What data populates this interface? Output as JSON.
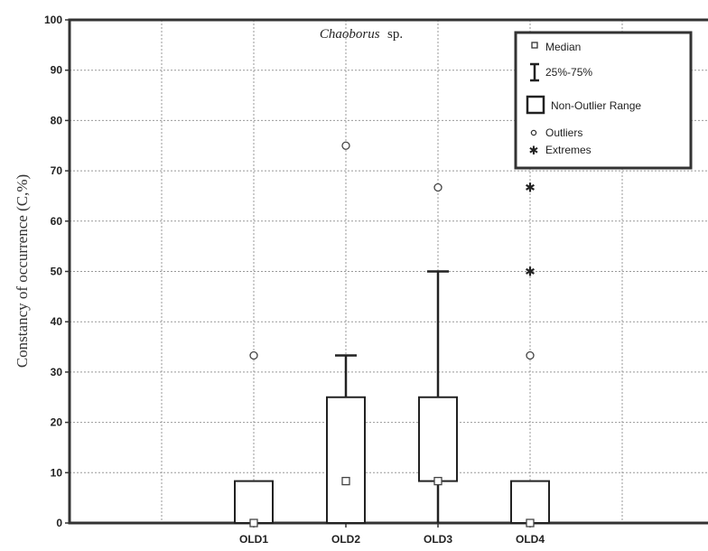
{
  "chart_data": {
    "type": "boxplot",
    "title": "Chaoborus",
    "title_suffix": "sp.",
    "ylabel": "Constancy of occurrence (C,%)",
    "xlabel": "",
    "ylim": [
      0,
      100
    ],
    "yticks": [
      0,
      10,
      20,
      30,
      40,
      50,
      60,
      70,
      80,
      90,
      100
    ],
    "grid": true,
    "legend_position": "top-right",
    "categories": [
      "OLD1",
      "OLD2",
      "OLD3",
      "OLD4"
    ],
    "series": [
      {
        "category": "OLD1",
        "median": 0,
        "q1": 0,
        "q3": 8.33,
        "whisker_low": 0,
        "whisker_high": 8.33,
        "outliers": [
          33.3
        ],
        "extremes": []
      },
      {
        "category": "OLD2",
        "median": 8.33,
        "q1": 0,
        "q3": 25,
        "whisker_low": 0,
        "whisker_high": 33.3,
        "outliers": [
          75
        ],
        "extremes": []
      },
      {
        "category": "OLD3",
        "median": 8.33,
        "q1": 8.33,
        "q3": 25,
        "whisker_low": 0,
        "whisker_high": 50,
        "outliers": [
          66.7
        ],
        "extremes": []
      },
      {
        "category": "OLD4",
        "median": 0,
        "q1": 0,
        "q3": 8.33,
        "whisker_low": 0,
        "whisker_high": 8.33,
        "outliers": [
          33.3
        ],
        "extremes": [
          50,
          66.7
        ]
      }
    ],
    "legend": {
      "median": "Median",
      "iqr": "25%-75%",
      "range": "Non-Outlier Range",
      "outliers": "Outliers",
      "extremes": "Extremes"
    }
  }
}
